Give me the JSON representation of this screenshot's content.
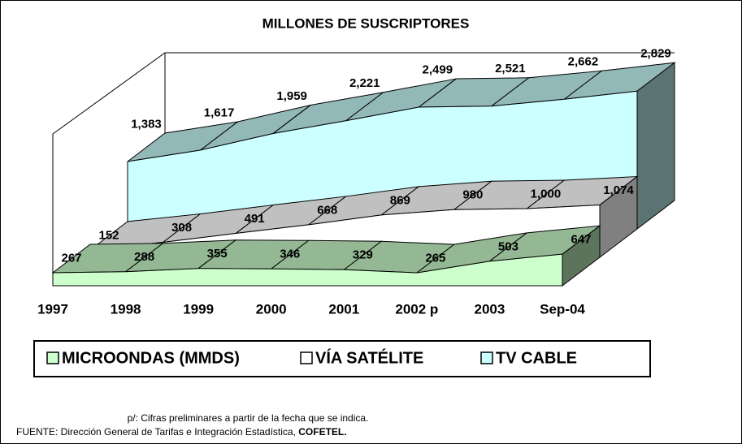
{
  "chart_data": {
    "type": "area3d",
    "title": "MILLONES DE SUSCRIPTORES",
    "categories": [
      "1997",
      "1998",
      "1999",
      "2000",
      "2001",
      "2002 p",
      "2003",
      "Sep-04"
    ],
    "series": [
      {
        "name": "MICROONDAS (MMDS)",
        "color": "#ccffcc",
        "values": [
          267,
          288,
          355,
          346,
          329,
          265,
          503,
          647
        ]
      },
      {
        "name": "VÍA SATÉLITE",
        "color": "#ffffff",
        "values": [
          152,
          308,
          491,
          668,
          869,
          980,
          1000,
          1074
        ],
        "value_labels": [
          "152",
          "308",
          "491",
          "668",
          "869",
          "980",
          "1,000",
          "1,074"
        ]
      },
      {
        "name": "TV CABLE",
        "color": "#ccffff",
        "values": [
          1383,
          1617,
          1959,
          2221,
          2499,
          2521,
          2662,
          2829
        ],
        "value_labels": [
          "1,383",
          "1,617",
          "1,959",
          "2,221",
          "2,499",
          "2,521",
          "2,662",
          "2,829"
        ]
      }
    ],
    "footnote": "p/: Cifras preliminares a partir de la fecha que se indica.",
    "source": "FUENTE: Dirección General de Tarifas e Integración Estadística, ",
    "source_bold": "COFETEL."
  }
}
